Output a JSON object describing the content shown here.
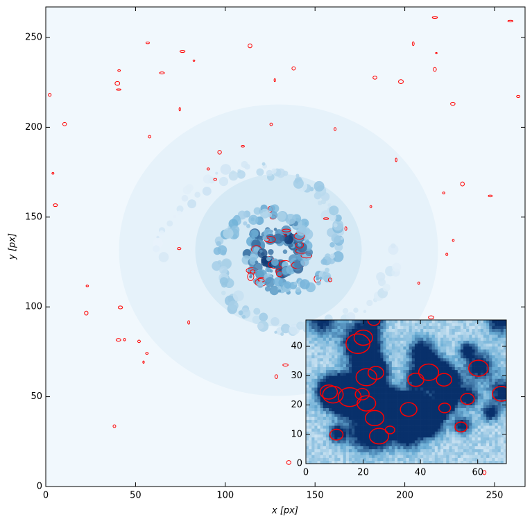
{
  "chart_data": [
    {
      "type": "image",
      "xlabel": "x [px]",
      "ylabel": "y [px]",
      "xlim": [
        0,
        267
      ],
      "ylim": [
        0,
        267
      ],
      "xticks": [
        0,
        50,
        100,
        150,
        200,
        250
      ],
      "yticks": [
        0,
        50,
        100,
        150,
        200,
        250
      ],
      "colormap": "Blues",
      "contour_color": "#ff0000"
    },
    {
      "type": "image",
      "xlim": [
        0,
        70
      ],
      "ylim": [
        0,
        49
      ],
      "xticks": [
        0,
        20,
        40,
        60
      ],
      "yticks": [
        0,
        10,
        20,
        30,
        40
      ],
      "colormap": "Blues",
      "contour_color": "#ff0000"
    }
  ]
}
